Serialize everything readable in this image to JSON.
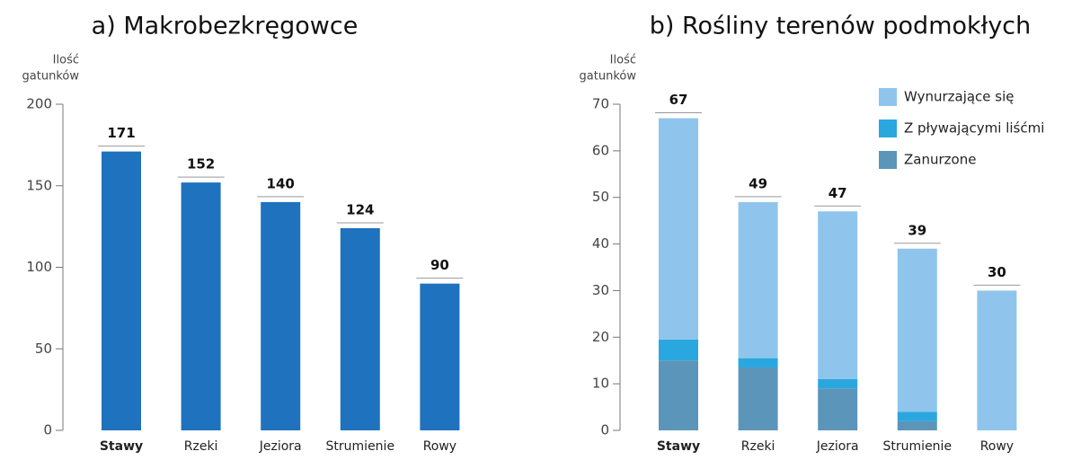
{
  "chart_data": [
    {
      "type": "bar",
      "title": "a)  Makrobezkręgowce",
      "ylabel": [
        "Ilość",
        "gatunków"
      ],
      "categories": [
        "Stawy",
        "Rzeki",
        "Jeziora",
        "Strumienie",
        "Rowy"
      ],
      "values": [
        171,
        152,
        140,
        124,
        90
      ],
      "color": "#1f72bd",
      "ylim": [
        0,
        200
      ],
      "yticks": [
        0,
        50,
        100,
        150,
        200
      ],
      "grid": false
    },
    {
      "type": "stacked_bar",
      "title": "b)  Rośliny terenów podmokłych",
      "ylabel": [
        "Ilość",
        "gatunków"
      ],
      "categories": [
        "Stawy",
        "Rzeki",
        "Jeziora",
        "Strumienie",
        "Rowy"
      ],
      "series": [
        {
          "name": "Wynurzające się",
          "color": "#8fc5ec",
          "values": [
            47.5,
            33.5,
            36,
            35,
            30
          ]
        },
        {
          "name": "Z pływającymi liśćmi",
          "color": "#2aa7df",
          "values": [
            4.5,
            2,
            2,
            2,
            0
          ]
        },
        {
          "name": "Zanurzone",
          "color": "#5b95ba",
          "values": [
            15,
            13.5,
            9,
            2,
            0
          ]
        }
      ],
      "totals": [
        67,
        49,
        47,
        39,
        30
      ],
      "ylim": [
        0,
        70
      ],
      "yticks": [
        0,
        10,
        20,
        30,
        40,
        50,
        60,
        70
      ],
      "grid": false,
      "legend": "upper right"
    }
  ]
}
